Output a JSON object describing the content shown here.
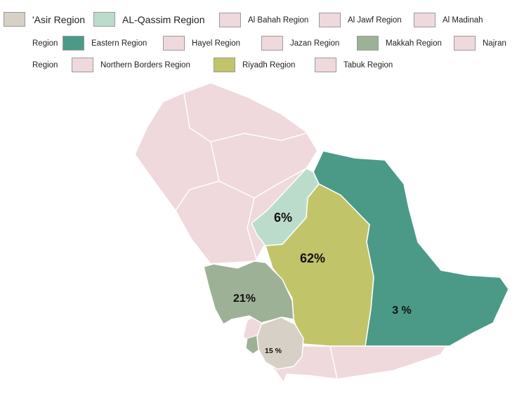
{
  "chart_data": {
    "type": "choropleth map",
    "legend": [
      {
        "name": "'Asir Region",
        "color": "#d6d0c6"
      },
      {
        "name": "AL-Qassim Region",
        "color": "#bcdccb"
      },
      {
        "name": "Al Bahah Region",
        "color": "#efd9dd"
      },
      {
        "name": "Al Jawf Region",
        "color": "#efd9dd"
      },
      {
        "name": "Al Madinah Region",
        "color": "#efd9dd"
      },
      {
        "name": "Eastern Region",
        "color": "#4b9a87"
      },
      {
        "name": "Hayel Region",
        "color": "#efd9dd"
      },
      {
        "name": "Jazan Region",
        "color": "#efd9dd"
      },
      {
        "name": "Makkah Region",
        "color": "#9db196"
      },
      {
        "name": "Najran Region",
        "color": "#efd9dd"
      },
      {
        "name": "Northern Borders Region",
        "color": "#efd9dd"
      },
      {
        "name": "Riyadh Region",
        "color": "#c2c46a"
      },
      {
        "name": "Tabuk Region",
        "color": "#efd9dd"
      }
    ],
    "data": [
      {
        "region": "Riyadh Region",
        "label": "62%",
        "value": 62
      },
      {
        "region": "Makkah Region",
        "label": "21%",
        "value": 21
      },
      {
        "region": "'Asir Region",
        "label": "15 %",
        "value": 15
      },
      {
        "region": "AL-Qassim Region",
        "label": "6%",
        "value": 6
      },
      {
        "region": "Eastern Region",
        "label": "3 %",
        "value": 3
      }
    ]
  }
}
